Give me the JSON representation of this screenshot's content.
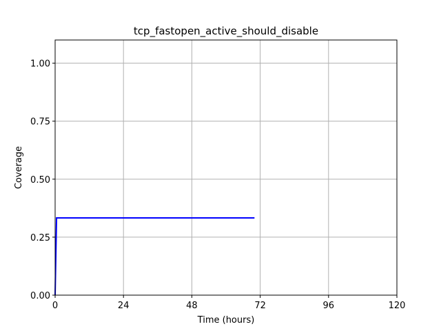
{
  "chart_data": {
    "type": "line",
    "title": "tcp_fastopen_active_should_disable",
    "xlabel": "Time (hours)",
    "ylabel": "Coverage",
    "xlim": [
      0,
      120
    ],
    "ylim": [
      0,
      1.1
    ],
    "xticks": [
      0,
      24,
      48,
      72,
      96,
      120
    ],
    "xtick_labels": [
      "0",
      "24",
      "48",
      "72",
      "96",
      "120"
    ],
    "yticks": [
      0,
      0.25,
      0.5,
      0.75,
      1.0
    ],
    "ytick_labels": [
      "0.00",
      "0.25",
      "0.50",
      "0.75",
      "1.00"
    ],
    "grid": true,
    "series": [
      {
        "color": "#0000ff",
        "x": [
          0,
          0.5,
          70
        ],
        "y": [
          0,
          0.333,
          0.333
        ]
      }
    ]
  }
}
